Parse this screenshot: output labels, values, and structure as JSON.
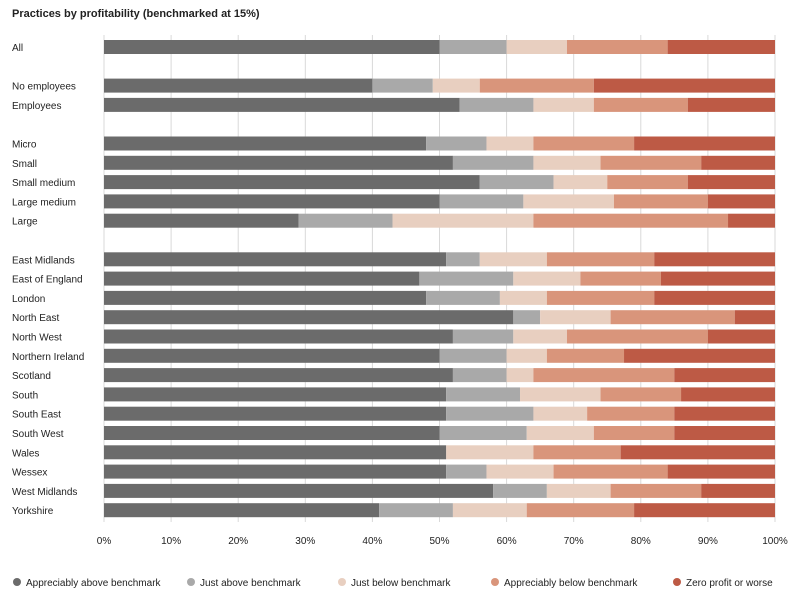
{
  "chart_data": {
    "type": "bar",
    "orientation": "horizontal",
    "stacked": true,
    "title": "Practices by profitability (benchmarked at 15%)",
    "xlim": [
      0,
      100
    ],
    "x_ticks": [
      "0%",
      "10%",
      "20%",
      "30%",
      "40%",
      "50%",
      "60%",
      "70%",
      "80%",
      "90%",
      "100%"
    ],
    "grid": true,
    "legend_position": "bottom",
    "groups": [
      [
        "All"
      ],
      [
        "No employees",
        "Employees"
      ],
      [
        "Micro",
        "Small",
        "Small medium",
        "Large medium",
        "Large"
      ],
      [
        "East Midlands",
        "East of England",
        "London",
        "North East",
        "North West",
        "Northern Ireland",
        "Scotland",
        "South",
        "South East",
        "South West",
        "Wales",
        "Wessex",
        "West Midlands",
        "Yorkshire"
      ]
    ],
    "categories": [
      "All",
      "No employees",
      "Employees",
      "Micro",
      "Small",
      "Small medium",
      "Large medium",
      "Large",
      "East Midlands",
      "East of England",
      "London",
      "North East",
      "North West",
      "Northern Ireland",
      "Scotland",
      "South",
      "South East",
      "South West",
      "Wales",
      "Wessex",
      "West Midlands",
      "Yorkshire"
    ],
    "series": [
      {
        "name": "Appreciably above benchmark",
        "color": "#6b6b6b",
        "values": [
          50,
          40,
          53,
          48,
          52,
          56,
          50,
          29,
          51,
          47,
          48,
          61,
          52,
          50,
          52,
          51,
          51,
          50,
          51,
          51,
          58,
          41
        ]
      },
      {
        "name": "Just above benchmark",
        "color": "#a9a9a9",
        "values": [
          10,
          9,
          11,
          9,
          12,
          11,
          12.5,
          14,
          5,
          14,
          11,
          4,
          9,
          10,
          8,
          11,
          13,
          13,
          0,
          6,
          8,
          11
        ]
      },
      {
        "name": "Just below benchmark",
        "color": "#e8cfc0",
        "values": [
          9,
          7,
          9,
          7,
          10,
          8,
          13.5,
          21,
          10,
          10,
          7,
          10.5,
          8,
          6,
          4,
          12,
          8,
          10,
          13,
          10,
          9.5,
          11
        ]
      },
      {
        "name": "Appreciably below benchmark",
        "color": "#d9957b",
        "values": [
          15,
          17,
          14,
          15,
          15,
          12,
          14,
          29,
          16,
          12,
          16,
          18.5,
          21,
          11.5,
          21,
          12,
          13,
          12,
          13,
          17,
          13.5,
          16
        ]
      },
      {
        "name": "Zero profit or worse",
        "color": "#bd5a45",
        "values": [
          16,
          27,
          13,
          21,
          11,
          13,
          10,
          7,
          18,
          17,
          18,
          6,
          10,
          22.5,
          15,
          14,
          15,
          15,
          23,
          16,
          11,
          21
        ]
      }
    ]
  }
}
